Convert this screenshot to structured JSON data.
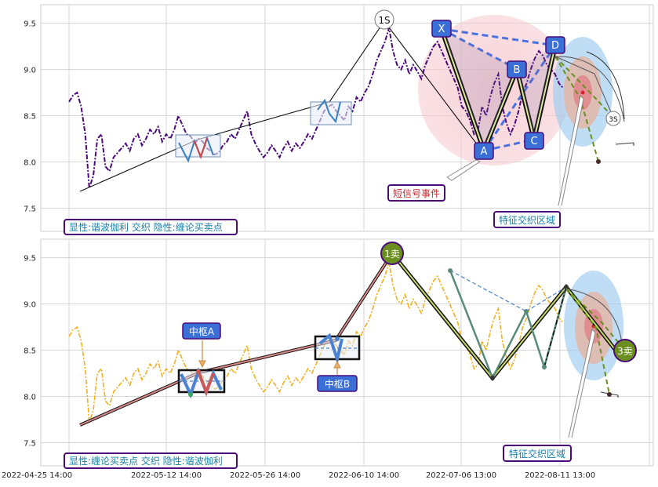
{
  "chart_data": [
    {
      "type": "line",
      "panel": "top",
      "ylim": [
        7.25,
        9.7
      ],
      "yticks": [
        "9.5",
        "9.0",
        "8.5",
        "8.0",
        "7.5"
      ],
      "ytick_values": [
        9.5,
        9.0,
        8.5,
        8.0,
        7.5
      ],
      "series": [
        {
          "style": "purple dash-dot",
          "color": "#4b0a7a",
          "values": [
            8.65,
            8.72,
            8.75,
            8.6,
            8.3,
            7.72,
            7.85,
            8.25,
            8.3,
            7.95,
            7.9,
            8.05,
            8.1,
            8.15,
            8.2,
            8.12,
            8.25,
            8.3,
            8.18,
            8.25,
            8.35,
            8.3,
            8.38,
            8.22,
            8.3,
            8.25,
            8.35,
            8.5,
            8.4,
            8.3,
            8.28,
            8.2,
            8.25,
            8.22,
            8.15,
            8.12,
            8.08,
            8.1,
            8.18,
            8.22,
            8.3,
            8.25,
            8.35,
            8.45,
            8.55,
            8.3,
            8.2,
            8.12,
            8.05,
            8.1,
            8.18,
            8.12,
            8.05,
            8.15,
            8.22,
            8.12,
            8.2,
            8.15,
            8.22,
            8.3,
            8.25,
            8.35,
            8.45,
            8.55,
            8.6,
            8.62,
            8.55,
            8.5,
            8.45,
            8.6,
            8.55,
            8.7,
            8.65,
            8.75,
            8.82,
            8.95,
            9.1,
            9.2,
            9.3,
            9.45,
            9.2,
            9.05,
            9.0,
            9.1,
            8.95,
            9.05,
            8.98,
            8.9,
            9.05,
            9.15,
            9.25,
            9.3,
            9.2,
            9.1,
            9.0,
            8.9,
            8.8,
            8.6,
            8.55,
            8.45,
            8.3,
            8.35,
            8.6,
            8.5,
            8.7,
            8.85,
            8.95,
            8.6,
            8.42,
            8.3,
            8.4,
            8.55,
            8.75,
            8.85,
            9.0,
            9.12,
            9.2,
            9.15,
            9.05,
            9.0,
            8.95,
            8.85,
            8.8
          ]
        }
      ],
      "labels": {
        "x": "X",
        "a": "A",
        "b": "B",
        "c": "C",
        "d": "D",
        "s1": "1S",
        "s3": "3S",
        "short_signal": "短信号事件",
        "feature_zone": "特征交织区域",
        "mode": "显性:谐波伽利 交织 隐性:缠论买卖点"
      }
    },
    {
      "type": "line",
      "panel": "bottom",
      "ylim": [
        7.25,
        9.7
      ],
      "yticks": [
        "9.5",
        "9.0",
        "8.5",
        "8.0",
        "7.5"
      ],
      "ytick_values": [
        9.5,
        9.0,
        8.5,
        8.0,
        7.5
      ],
      "x_tick_labels": [
        "2022-04-25 14:00",
        "2022-05-12 14:00",
        "2022-05-26 14:00",
        "2022-06-10 14:00",
        "2022-07-06 13:00",
        "2022-08-11 13:00"
      ],
      "series": [
        {
          "style": "orange dash-dot",
          "color": "#f0b020",
          "values": [
            8.65,
            8.72,
            8.75,
            8.6,
            8.3,
            7.72,
            7.85,
            8.25,
            8.3,
            7.95,
            7.9,
            8.05,
            8.1,
            8.15,
            8.2,
            8.12,
            8.25,
            8.3,
            8.18,
            8.25,
            8.35,
            8.3,
            8.38,
            8.22,
            8.3,
            8.25,
            8.35,
            8.5,
            8.4,
            8.3,
            8.28,
            8.2,
            8.25,
            8.22,
            8.15,
            8.12,
            8.08,
            8.1,
            8.18,
            8.22,
            8.3,
            8.25,
            8.35,
            8.45,
            8.55,
            8.3,
            8.2,
            8.12,
            8.05,
            8.1,
            8.18,
            8.12,
            8.05,
            8.15,
            8.22,
            8.12,
            8.2,
            8.15,
            8.22,
            8.3,
            8.25,
            8.35,
            8.45,
            8.55,
            8.6,
            8.62,
            8.55,
            8.5,
            8.45,
            8.6,
            8.55,
            8.7,
            8.65,
            8.75,
            8.82,
            8.95,
            9.1,
            9.2,
            9.3,
            9.45,
            9.2,
            9.05,
            9.0,
            9.1,
            8.95,
            9.05,
            8.98,
            8.9,
            9.05,
            9.15,
            9.25,
            9.3,
            9.2,
            9.1,
            9.0,
            8.9,
            8.8,
            8.6,
            8.55,
            8.45,
            8.3,
            8.35,
            8.6,
            8.5,
            8.7,
            8.85,
            8.95,
            8.6,
            8.42,
            8.3,
            8.4,
            8.55,
            8.75,
            8.85,
            9.0,
            9.12,
            9.2,
            9.15,
            9.05,
            9.0,
            8.95,
            8.85,
            8.8
          ]
        }
      ],
      "labels": {
        "sell1": "1卖",
        "sell3": "3卖",
        "pivot_a": "中枢A",
        "pivot_b": "中枢B",
        "feature_zone": "特征交织区域",
        "mode": "显性:缠论买卖点 交织 隐性:谐波伽利"
      }
    }
  ],
  "colors": {
    "purple_line": "#4b0a7a",
    "orange_line": "#f0b020",
    "label_blue": "#3a6fd8",
    "label_border": "#4b0a7a",
    "green_marker": "#6a8f1e",
    "pink_zone": "#f4c6cc",
    "blue_zone": "#9ccbf0"
  }
}
